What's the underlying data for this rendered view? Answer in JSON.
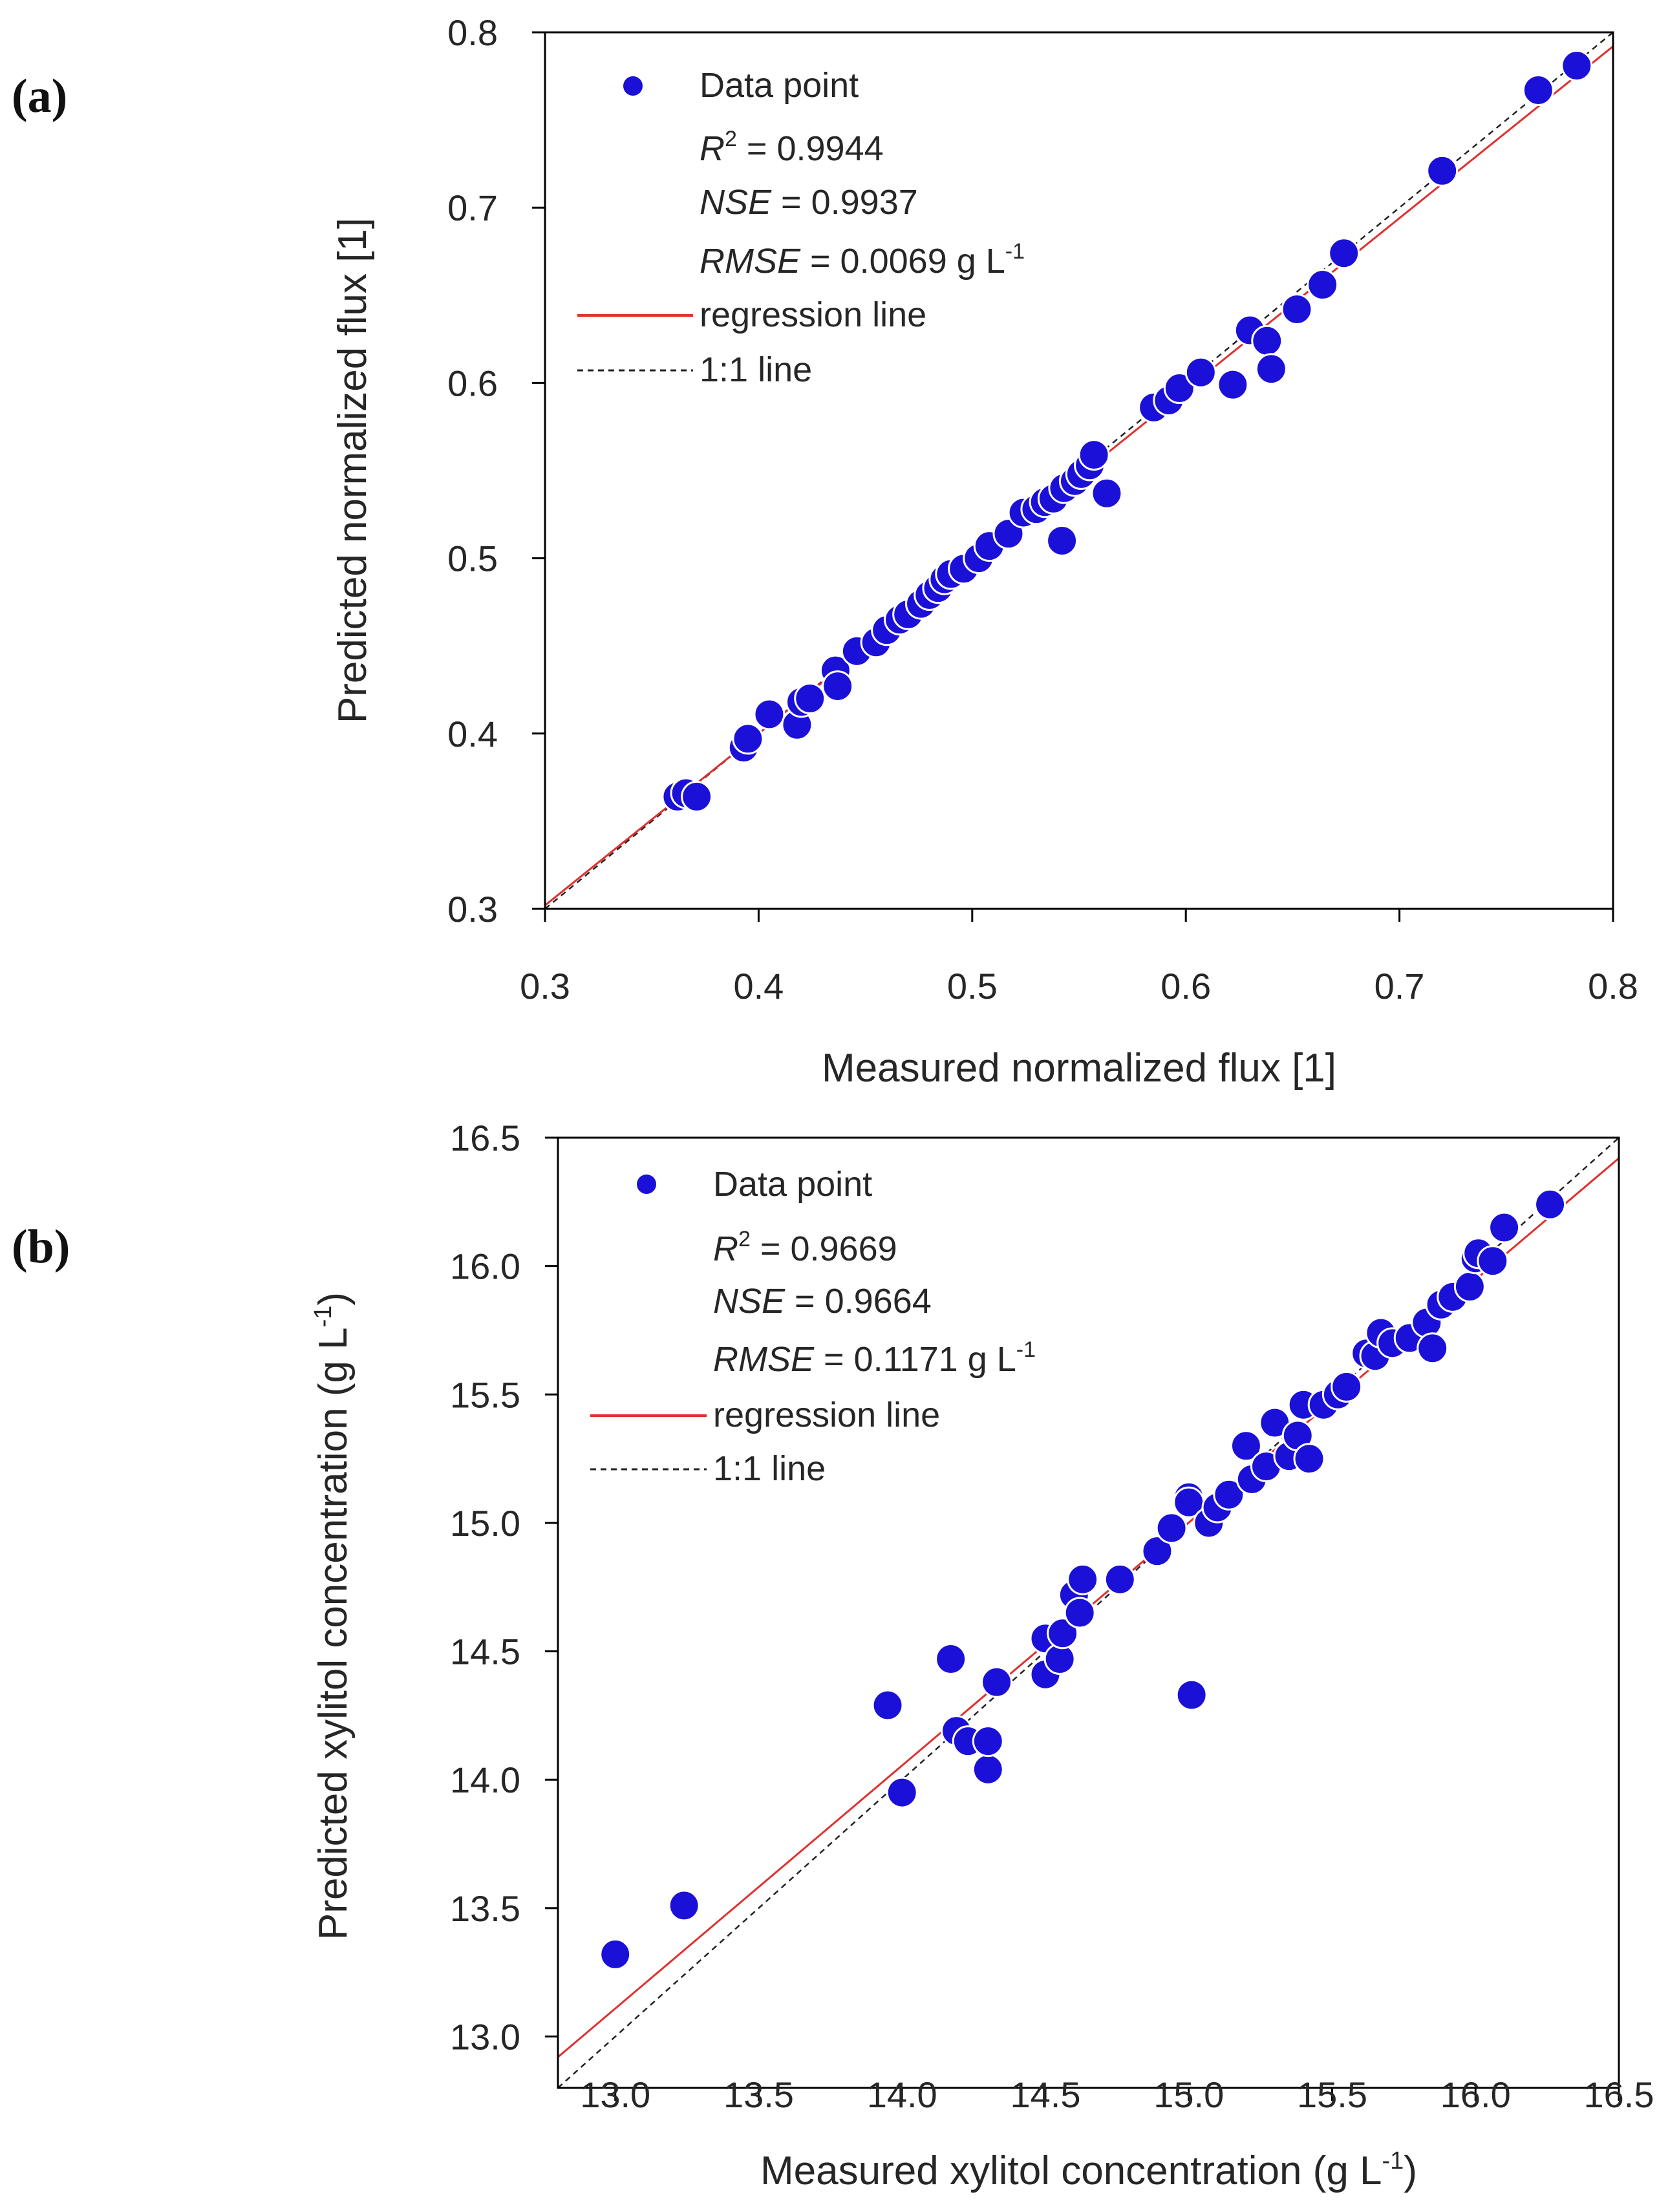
{
  "colors": {
    "points": "#1a10d8",
    "points_edge": "#ffffff",
    "regression": "#e03030",
    "identity": "#222222",
    "axis": "#000000"
  },
  "chart_data": [
    {
      "type": "scatter",
      "panel_label": "(a)",
      "xlabel": "Measured normalized flux [1]",
      "ylabel": "Predicted normalized flux [1]",
      "xlim": [
        0.3,
        0.8
      ],
      "ylim": [
        0.3,
        0.8
      ],
      "xticks": [
        0.3,
        0.4,
        0.5,
        0.6,
        0.7,
        0.8
      ],
      "yticks": [
        0.3,
        0.4,
        0.5,
        0.6,
        0.7,
        0.8
      ],
      "xtick_labels": [
        "0.3",
        "0.4",
        "0.5",
        "0.6",
        "0.7",
        "0.8"
      ],
      "ytick_labels": [
        "0.3",
        "0.4",
        "0.5",
        "0.6",
        "0.7",
        "0.8"
      ],
      "legend": {
        "data_point": "Data point",
        "r2_label": "R",
        "r2_sup": "2",
        "r2_value": " = 0.9944",
        "nse_label": "NSE",
        "nse_value": " = 0.9937",
        "rmse_label": "RMSE",
        "rmse_value": " = 0.0069 g L",
        "rmse_sup": "-1",
        "regression": "regression line",
        "identity": "1:1 line"
      },
      "regression_line": {
        "x": [
          0.3,
          0.8
        ],
        "y": [
          0.302,
          0.792
        ]
      },
      "identity_line": {
        "x": [
          0.3,
          0.8
        ],
        "y": [
          0.3,
          0.8
        ]
      },
      "series": [
        {
          "name": "Data point",
          "x": [
            0.362,
            0.366,
            0.371,
            0.393,
            0.395,
            0.405,
            0.418,
            0.42,
            0.424,
            0.436,
            0.437,
            0.446,
            0.455,
            0.46,
            0.466,
            0.47,
            0.476,
            0.48,
            0.484,
            0.487,
            0.49,
            0.496,
            0.503,
            0.508,
            0.517,
            0.524,
            0.53,
            0.534,
            0.538,
            0.543,
            0.548,
            0.551,
            0.555,
            0.557,
            0.542,
            0.563,
            0.585,
            0.592,
            0.597,
            0.607,
            0.622,
            0.63,
            0.638,
            0.64,
            0.652,
            0.664,
            0.674,
            0.72,
            0.765,
            0.783
          ],
          "y": [
            0.364,
            0.366,
            0.364,
            0.392,
            0.397,
            0.411,
            0.405,
            0.418,
            0.42,
            0.436,
            0.427,
            0.447,
            0.452,
            0.459,
            0.465,
            0.468,
            0.474,
            0.479,
            0.483,
            0.488,
            0.491,
            0.494,
            0.5,
            0.507,
            0.514,
            0.526,
            0.528,
            0.532,
            0.534,
            0.54,
            0.544,
            0.548,
            0.553,
            0.559,
            0.51,
            0.537,
            0.586,
            0.59,
            0.597,
            0.606,
            0.599,
            0.63,
            0.624,
            0.608,
            0.642,
            0.656,
            0.674,
            0.721,
            0.767,
            0.781
          ]
        }
      ]
    },
    {
      "type": "scatter",
      "panel_label": "(b)",
      "xlabel": "Measured xylitol concentration (g L",
      "xlabel_sup": "-1",
      "xlabel_end": ")",
      "ylabel": "Predicted xylitol concentration (g L",
      "ylabel_sup": "-1",
      "ylabel_end": ")",
      "xlim": [
        12.8,
        16.5
      ],
      "ylim": [
        12.8,
        16.5
      ],
      "xticks": [
        13.0,
        13.5,
        14.0,
        14.5,
        15.0,
        15.5,
        16.0,
        16.5
      ],
      "yticks": [
        13.0,
        13.5,
        14.0,
        14.5,
        15.0,
        15.5,
        16.0,
        16.5
      ],
      "xtick_labels": [
        "13.0",
        "13.5",
        "14.0",
        "14.5",
        "15.0",
        "15.5",
        "16.0",
        "16.5"
      ],
      "ytick_labels": [
        "13.0",
        "13.5",
        "14.0",
        "14.5",
        "15.0",
        "15.5",
        "16.0",
        "16.5"
      ],
      "legend": {
        "data_point": "Data point",
        "r2_label": "R",
        "r2_sup": "2",
        "r2_value": " = 0.9669",
        "nse_label": "NSE",
        "nse_value": " = 0.9664",
        "rmse_label": "RMSE",
        "rmse_value": " = 0.1171 g L",
        "rmse_sup": "-1",
        "regression": "regression line",
        "identity": "1:1 line"
      },
      "regression_line": {
        "x": [
          12.8,
          16.5
        ],
        "y": [
          12.92,
          16.42
        ]
      },
      "identity_line": {
        "x": [
          12.8,
          16.5
        ],
        "y": [
          12.8,
          16.5
        ]
      },
      "series": [
        {
          "name": "Data point",
          "x": [
            13.0,
            13.24,
            13.95,
            14.0,
            14.17,
            14.19,
            14.23,
            14.3,
            14.3,
            14.33,
            14.5,
            14.5,
            14.55,
            14.56,
            14.6,
            14.63,
            14.62,
            14.76,
            14.89,
            14.94,
            15.0,
            15.01,
            15.0,
            15.07,
            15.1,
            15.14,
            15.2,
            15.22,
            15.27,
            15.3,
            15.35,
            15.38,
            15.4,
            15.42,
            15.47,
            15.52,
            15.55,
            15.62,
            15.65,
            15.67,
            15.71,
            15.77,
            15.83,
            15.85,
            15.88,
            15.92,
            15.98,
            16.0,
            16.01,
            16.06,
            16.1,
            16.26
          ],
          "y": [
            13.32,
            13.51,
            14.29,
            13.95,
            14.47,
            14.19,
            14.15,
            14.04,
            14.15,
            14.38,
            14.41,
            14.55,
            14.47,
            14.57,
            14.72,
            14.78,
            14.65,
            14.78,
            14.89,
            14.98,
            15.1,
            14.33,
            15.08,
            15.0,
            15.06,
            15.11,
            15.3,
            15.17,
            15.22,
            15.39,
            15.26,
            15.34,
            15.46,
            15.25,
            15.46,
            15.5,
            15.53,
            15.66,
            15.65,
            15.74,
            15.7,
            15.72,
            15.78,
            15.68,
            15.85,
            15.88,
            15.92,
            16.03,
            16.05,
            16.02,
            16.15,
            16.24
          ]
        }
      ]
    }
  ]
}
